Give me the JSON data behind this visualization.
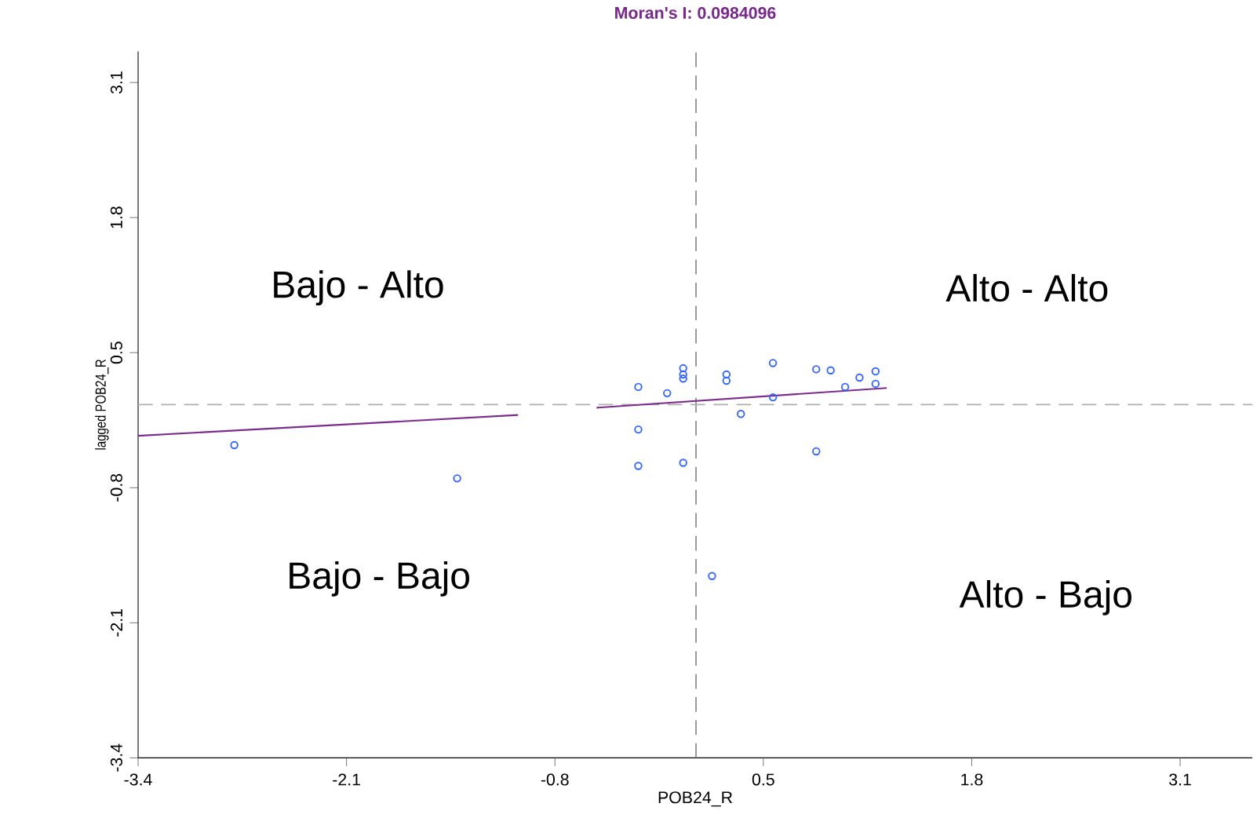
{
  "chart_data": {
    "type": "scatter",
    "title": "Moran's I: 0.0984096",
    "xlabel": "POB24_R",
    "ylabel": "lagged POB24_R",
    "xlim": [
      -3.4,
      3.55
    ],
    "ylim": [
      -3.4,
      3.4
    ],
    "xticks": [
      -3.4,
      -2.1,
      -0.8,
      0.5,
      1.8,
      3.1
    ],
    "yticks": [
      -3.4,
      -2.1,
      -0.8,
      0.5,
      1.8,
      3.1
    ],
    "series": [
      {
        "color": "#3366ff",
        "marker": "circle",
        "x": [
          -0.28,
          -0.28,
          -0.28,
          -0.1,
          0.0,
          0.0,
          0.0,
          0.0,
          0.27,
          0.27,
          0.36,
          0.56,
          0.56,
          0.83,
          0.83,
          0.92,
          1.01,
          1.1,
          1.2,
          1.2,
          0.18,
          -2.8,
          -1.41
        ],
        "values": [
          0.17,
          -0.24,
          -0.59,
          0.11,
          0.35,
          0.29,
          0.25,
          -0.56,
          0.29,
          0.23,
          -0.09,
          0.4,
          0.07,
          0.34,
          -0.45,
          0.33,
          0.17,
          0.26,
          0.32,
          0.2,
          -1.65,
          -0.39,
          -0.71
        ]
      },
      {
        "type": "line",
        "color": "#7b2d8e",
        "line_style": "solid",
        "x": [
          -3.4,
          -1.03
        ],
        "values": [
          -0.3,
          -0.1
        ]
      },
      {
        "type": "line",
        "color": "#7b2d8e",
        "line_style": "solid",
        "x": [
          -0.54,
          1.27
        ],
        "values": [
          -0.03,
          0.16
        ]
      }
    ],
    "ref_lines": [
      {
        "axis": "x",
        "value": 0.08,
        "color": "#808080",
        "line_style": "dashed"
      },
      {
        "axis": "y",
        "value": 0.0,
        "color": "#b0b0b0",
        "line_style": "dashed"
      }
    ],
    "annotations": [
      "Bajo - Alto",
      "Alto - Alto",
      "Bajo - Bajo",
      "Alto - Bajo"
    ]
  }
}
